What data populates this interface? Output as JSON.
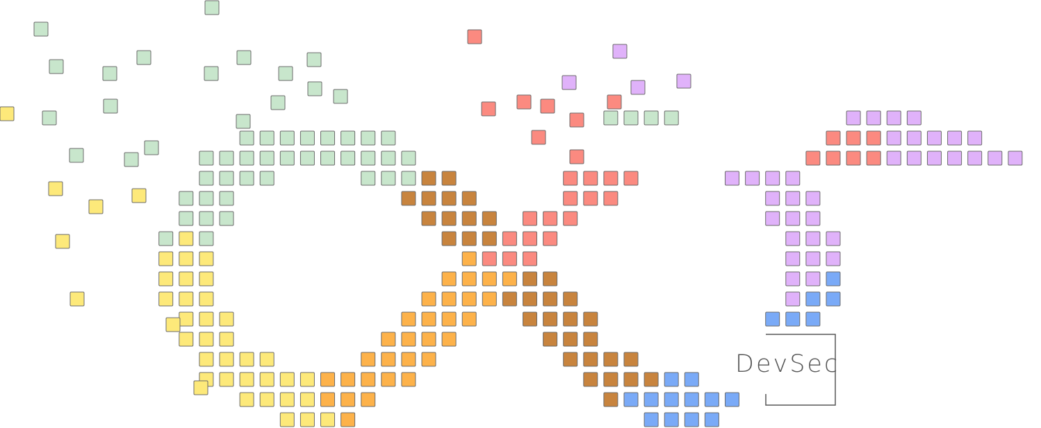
{
  "logo": {
    "text": "DevSec"
  },
  "palette": {
    "mint": "#c8e6cc",
    "yellow": "#fde97a",
    "orange": "#fdb24a",
    "brown": "#c8843e",
    "salmon": "#fb8a80",
    "lavender": "#e0b2fa",
    "blue": "#7aaaf7",
    "tile_border": "#6b6b6b",
    "frame": "#555555"
  }
}
